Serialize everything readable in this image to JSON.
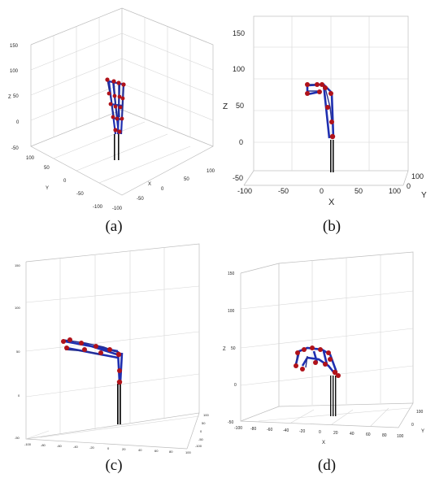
{
  "panels": [
    {
      "caption": "(a)",
      "z_ticks": [
        "150",
        "100",
        "50",
        "0",
        "-50"
      ],
      "x_ticks": [
        "-100",
        "-50",
        "0",
        "50",
        "100"
      ],
      "y_ticks": [
        "100",
        "50",
        "0",
        "-50",
        "-100"
      ],
      "labels": {
        "x": "X",
        "y": "Y",
        "z": "Z"
      }
    },
    {
      "caption": "(b)",
      "z_ticks": [
        "150",
        "100",
        "50",
        "0",
        "-50"
      ],
      "x_ticks": [
        "-100",
        "-50",
        "0",
        "50",
        "100"
      ],
      "y_ticks": [
        "100",
        "0"
      ],
      "labels": {
        "x": "X",
        "y": "Y",
        "z": "Z"
      }
    },
    {
      "caption": "(c)",
      "z_ticks": [
        "150",
        "100",
        "50",
        "0",
        "-50"
      ],
      "x_ticks": [
        "-100",
        "-80",
        "-60",
        "-40",
        "-20",
        "0",
        "20",
        "40",
        "60",
        "80",
        "100"
      ],
      "y_ticks": [
        "100",
        "50",
        "0",
        "-50",
        "-100"
      ],
      "labels": {
        "x": "",
        "y": "",
        "z": ""
      }
    },
    {
      "caption": "(d)",
      "z_ticks": [
        "150",
        "100",
        "50",
        "0",
        "-50"
      ],
      "x_ticks": [
        "-100",
        "-80",
        "-60",
        "-40",
        "-20",
        "0",
        "20",
        "40",
        "60",
        "80",
        "100"
      ],
      "y_ticks": [
        "100",
        "0"
      ],
      "labels": {
        "x": "X",
        "y": "Y",
        "z": "Z"
      }
    }
  ],
  "colors": {
    "link": "#1f2fb0",
    "joint": "#b0121a",
    "base": "#111111",
    "grid": "#d6d6d6"
  }
}
